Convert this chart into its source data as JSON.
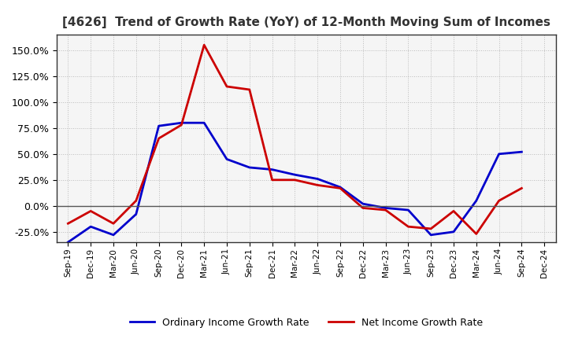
{
  "title": "[4626]  Trend of Growth Rate (YoY) of 12-Month Moving Sum of Incomes",
  "x_labels": [
    "Sep-19",
    "Dec-19",
    "Mar-20",
    "Jun-20",
    "Sep-20",
    "Dec-20",
    "Mar-21",
    "Jun-21",
    "Sep-21",
    "Dec-21",
    "Mar-22",
    "Jun-22",
    "Sep-22",
    "Dec-22",
    "Mar-23",
    "Jun-23",
    "Sep-23",
    "Dec-23",
    "Mar-24",
    "Jun-24",
    "Sep-24",
    "Dec-24"
  ],
  "ordinary_income": [
    -0.35,
    -0.2,
    -0.28,
    -0.08,
    0.77,
    0.8,
    0.8,
    0.45,
    0.37,
    0.35,
    0.3,
    0.26,
    0.18,
    0.02,
    -0.02,
    -0.04,
    -0.28,
    -0.25,
    0.05,
    0.5,
    0.52,
    null
  ],
  "net_income": [
    -0.17,
    -0.05,
    -0.17,
    0.05,
    0.65,
    0.78,
    1.55,
    1.15,
    1.12,
    0.25,
    0.25,
    0.2,
    0.17,
    -0.02,
    -0.04,
    -0.2,
    -0.22,
    -0.05,
    -0.27,
    0.05,
    0.17,
    null
  ],
  "ordinary_color": "#0000cc",
  "net_color": "#cc0000",
  "ylim": [
    -0.35,
    1.65
  ],
  "yticks": [
    -0.25,
    0.0,
    0.25,
    0.5,
    0.75,
    1.0,
    1.25,
    1.5
  ],
  "grid_color": "#bbbbbb",
  "bg_color": "#ffffff",
  "plot_bg_color": "#f5f5f5",
  "legend_ordinary": "Ordinary Income Growth Rate",
  "legend_net": "Net Income Growth Rate",
  "title_fontsize": 11,
  "line_width": 2.0
}
